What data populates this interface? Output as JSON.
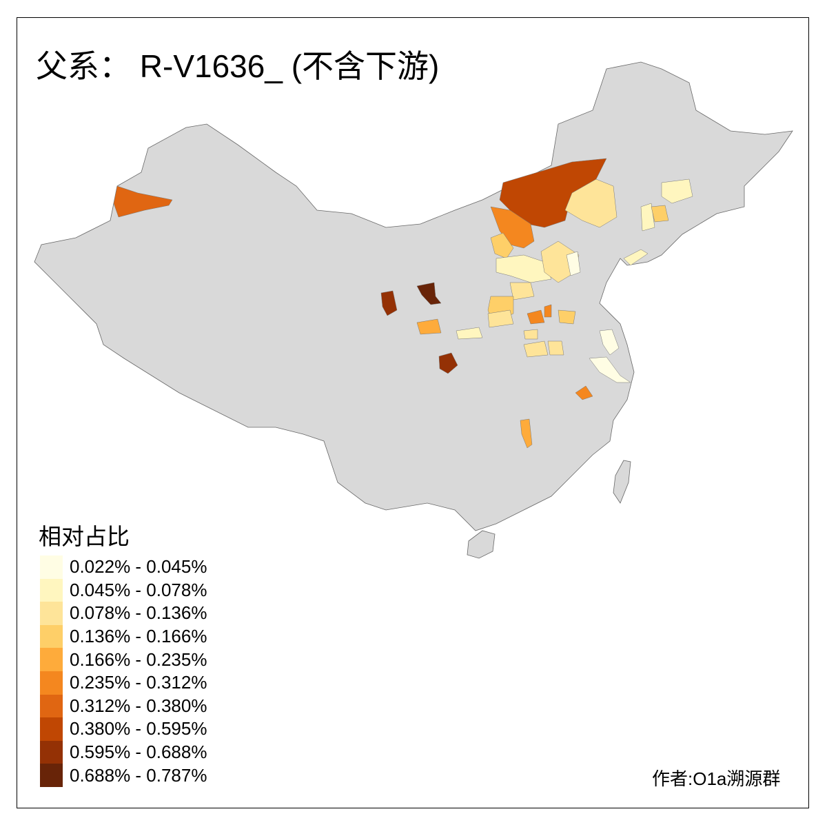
{
  "title": "父系： R-V1636_ (不含下游)",
  "legend": {
    "title": "相对占比",
    "items": [
      {
        "label": "0.022% - 0.045%",
        "color": "#fffde4"
      },
      {
        "label": "0.045% - 0.078%",
        "color": "#fff6bf"
      },
      {
        "label": "0.078% - 0.136%",
        "color": "#fee499"
      },
      {
        "label": "0.136% - 0.166%",
        "color": "#fecf68"
      },
      {
        "label": "0.166% - 0.235%",
        "color": "#feab3b"
      },
      {
        "label": "0.235% - 0.312%",
        "color": "#f4871f"
      },
      {
        "label": "0.312% - 0.380%",
        "color": "#e06612"
      },
      {
        "label": "0.380% - 0.595%",
        "color": "#c04703"
      },
      {
        "label": "0.595% - 0.688%",
        "color": "#943105"
      },
      {
        "label": "0.688% - 0.787%",
        "color": "#682408"
      }
    ]
  },
  "base_color": "#d9d9d9",
  "author": "作者:O1a溯源群"
}
